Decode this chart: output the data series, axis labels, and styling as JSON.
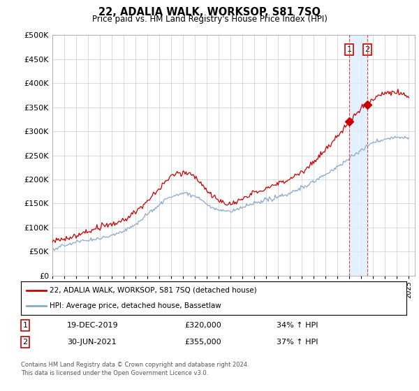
{
  "title": "22, ADALIA WALK, WORKSOP, S81 7SQ",
  "subtitle": "Price paid vs. HM Land Registry's House Price Index (HPI)",
  "y_values": [
    0,
    50000,
    100000,
    150000,
    200000,
    250000,
    300000,
    350000,
    400000,
    450000,
    500000
  ],
  "ylim": [
    0,
    500000
  ],
  "xlim": [
    1995,
    2025.5
  ],
  "red_line_color": "#cc0000",
  "blue_line_color": "#88aacc",
  "vline_color": "#dd4444",
  "shade_color": "#ddeeff",
  "marker1_x": 2019.97,
  "marker1_y": 320000,
  "marker2_x": 2021.5,
  "marker2_y": 355000,
  "vline1_x": 2019.97,
  "vline2_x": 2021.5,
  "legend_label1": "22, ADALIA WALK, WORKSOP, S81 7SQ (detached house)",
  "legend_label2": "HPI: Average price, detached house, Bassetlaw",
  "table_row1": [
    "1",
    "19-DEC-2019",
    "£320,000",
    "34% ↑ HPI"
  ],
  "table_row2": [
    "2",
    "30-JUN-2021",
    "£355,000",
    "37% ↑ HPI"
  ],
  "footnote": "Contains HM Land Registry data © Crown copyright and database right 2024.\nThis data is licensed under the Open Government Licence v3.0.",
  "background_color": "#ffffff",
  "grid_color": "#cccccc"
}
